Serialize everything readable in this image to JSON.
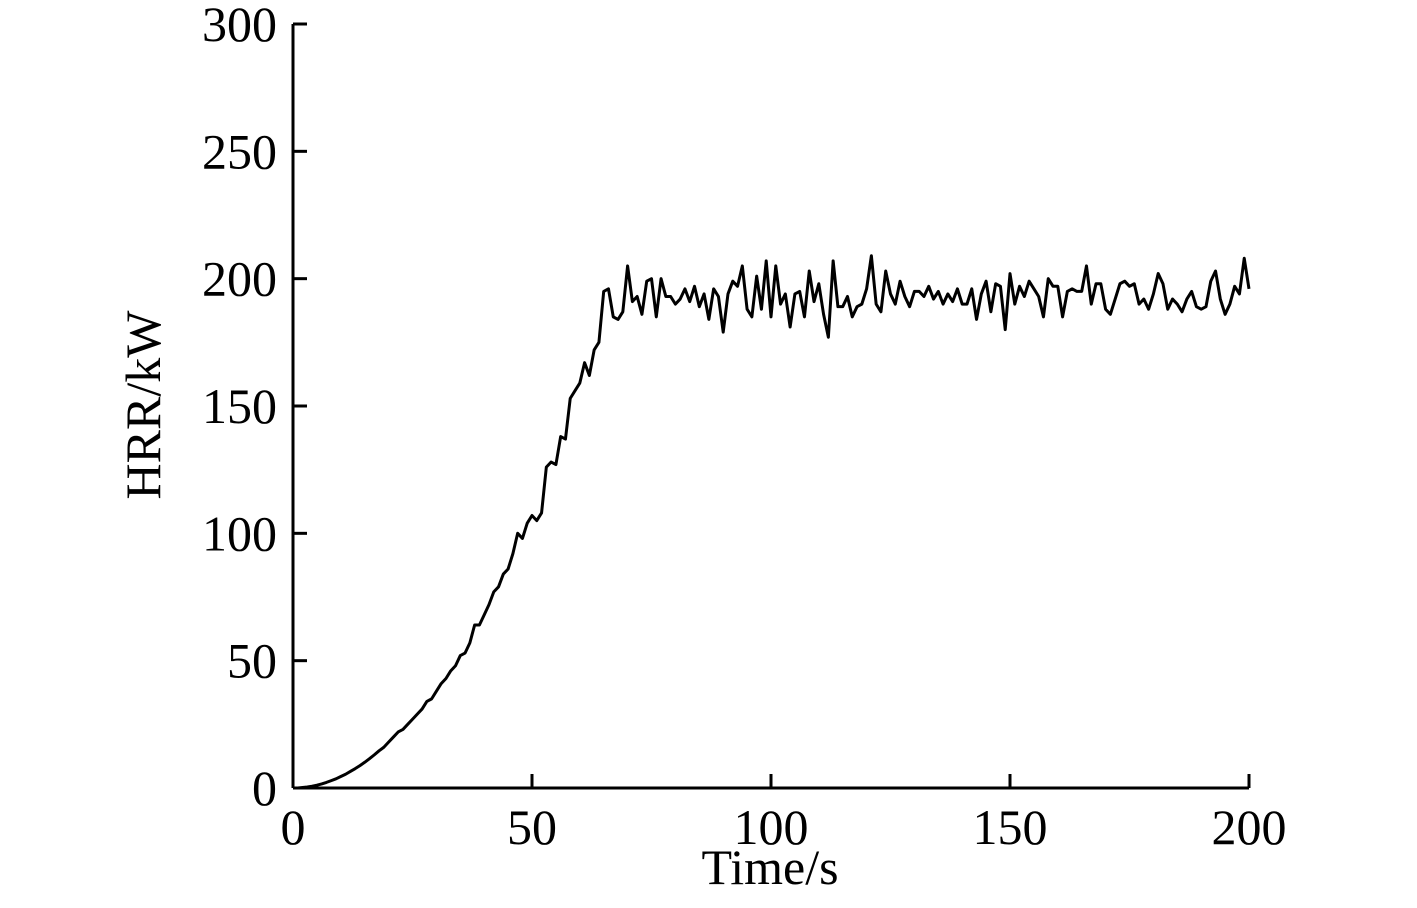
{
  "chart_data": {
    "type": "line",
    "x_label": "Time/s",
    "y_label": "HRR/kW",
    "x": [
      0,
      1,
      2,
      3,
      4,
      5,
      6,
      7,
      8,
      9,
      10,
      11,
      12,
      13,
      14,
      15,
      16,
      17,
      18,
      19,
      20,
      21,
      22,
      23,
      24,
      25,
      26,
      27,
      28,
      29,
      30,
      31,
      32,
      33,
      34,
      35,
      36,
      37,
      38,
      39,
      40,
      41,
      42,
      43,
      44,
      45,
      46,
      47,
      48,
      49,
      50,
      51,
      52,
      53,
      54,
      55,
      56,
      57,
      58,
      59,
      60,
      61,
      62,
      63,
      64,
      65,
      66,
      67,
      68,
      69,
      70,
      71,
      72,
      73,
      74,
      75,
      76,
      77,
      78,
      79,
      80,
      81,
      82,
      83,
      84,
      85,
      86,
      87,
      88,
      89,
      90,
      91,
      92,
      93,
      94,
      95,
      96,
      97,
      98,
      99,
      100,
      101,
      102,
      103,
      104,
      105,
      106,
      107,
      108,
      109,
      110,
      111,
      112,
      113,
      114,
      115,
      116,
      117,
      118,
      119,
      120,
      121,
      122,
      123,
      124,
      125,
      126,
      127,
      128,
      129,
      130,
      131,
      132,
      133,
      134,
      135,
      136,
      137,
      138,
      139,
      140,
      141,
      142,
      143,
      144,
      145,
      146,
      147,
      148,
      149,
      150,
      151,
      152,
      153,
      154,
      155,
      156,
      157,
      158,
      159,
      160,
      161,
      162,
      163,
      164,
      165,
      166,
      167,
      168,
      169,
      170,
      171,
      172,
      173,
      174,
      175,
      176,
      177,
      178,
      179,
      180,
      181,
      182,
      183,
      184,
      185,
      186,
      187,
      188,
      189,
      190,
      191,
      192,
      193,
      194,
      195,
      196,
      197,
      198,
      199,
      200
    ],
    "series": [
      {
        "name": "HRR",
        "color": "#000000",
        "values": [
          0,
          0,
          0.2,
          0.4,
          0.7,
          1.1,
          1.6,
          2.2,
          2.9,
          3.6,
          4.5,
          5.4,
          6.5,
          7.6,
          8.8,
          10.1,
          11.5,
          13,
          14.6,
          16,
          18,
          20,
          22,
          23,
          25,
          27,
          29,
          31,
          34,
          35,
          38,
          41,
          43,
          46,
          48,
          52,
          53,
          57,
          64,
          64,
          68,
          72,
          77,
          79,
          84,
          86,
          92,
          100,
          98,
          104,
          107,
          105,
          108,
          126,
          128,
          127,
          138,
          137,
          153,
          156,
          159,
          167,
          162,
          172,
          175,
          195,
          196,
          185,
          184,
          187,
          205,
          191,
          193,
          186,
          199,
          200,
          185,
          200,
          193,
          193,
          190,
          192,
          196,
          191,
          197,
          189,
          194,
          184,
          196,
          193,
          179,
          194,
          199,
          197,
          205,
          188,
          185,
          201,
          188,
          207,
          185,
          205,
          190,
          194,
          181,
          194,
          195,
          185,
          203,
          191,
          198,
          186,
          177,
          207,
          189,
          189,
          193,
          185,
          189,
          190,
          196,
          209,
          190,
          187,
          203,
          194,
          190,
          199,
          193,
          189,
          195,
          195,
          193,
          197,
          192,
          195,
          190,
          194,
          191,
          196,
          190,
          190,
          196,
          184,
          194,
          199,
          187,
          198,
          197,
          180,
          202,
          190,
          197,
          193,
          199,
          196,
          193,
          185,
          200,
          197,
          197,
          185,
          195,
          196,
          195,
          195,
          205,
          190,
          198,
          198,
          188,
          186,
          192,
          198,
          199,
          197,
          198,
          190,
          192,
          188,
          194,
          202,
          198,
          188,
          192,
          190,
          187,
          192,
          195,
          189,
          188,
          189,
          199,
          203,
          192,
          186,
          190,
          197,
          194,
          208,
          196
        ]
      }
    ],
    "xlim": [
      0,
      200
    ],
    "xticks": [
      0,
      50,
      100,
      150,
      200
    ],
    "ylim": [
      0,
      300
    ],
    "yticks": [
      0,
      50,
      100,
      150,
      200,
      250,
      300
    ]
  }
}
